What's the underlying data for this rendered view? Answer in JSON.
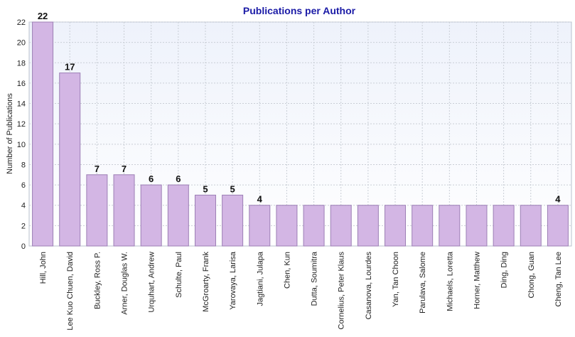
{
  "chart_data": {
    "type": "bar",
    "title": "Publications per Author",
    "xlabel": "",
    "ylabel": "Number of Publications",
    "ylim": [
      0,
      22
    ],
    "yticks": [
      0,
      2,
      4,
      6,
      8,
      10,
      12,
      14,
      16,
      18,
      20,
      22
    ],
    "grid": true,
    "legend": "none",
    "bar_color": "#d3b6e4",
    "bar_edge_color": "#9c7fb5",
    "categories": [
      "Hill, John",
      "Lee Kuo Chuen, David",
      "Buckley, Ross P.",
      "Arner, Douglas W.",
      "Urquhart, Andrew",
      "Schulte, Paul",
      "McGroarty, Frank",
      "Yarovaya, Larisa",
      "Jagtiani, Julapa",
      "Chen, Kun",
      "Dutta, Soumitra",
      "Cornelius, Peter Klaus",
      "Casanova, Lourdes",
      "Yan, Tan Choon",
      "Parulava, Salome",
      "Michaels, Loretta",
      "Horner, Matthew",
      "Ding, Ding",
      "Chong, Guan",
      "Cheng, Tan Lee"
    ],
    "values": [
      22,
      17,
      7,
      7,
      6,
      6,
      5,
      5,
      4,
      4,
      4,
      4,
      4,
      4,
      4,
      4,
      4,
      4,
      4,
      4
    ],
    "data_labels": [
      "22",
      "17",
      "7",
      "7",
      "6",
      "6",
      "5",
      "5",
      "4",
      "",
      "",
      "",
      "",
      "",
      "",
      "",
      "",
      "",
      "",
      "4"
    ]
  }
}
